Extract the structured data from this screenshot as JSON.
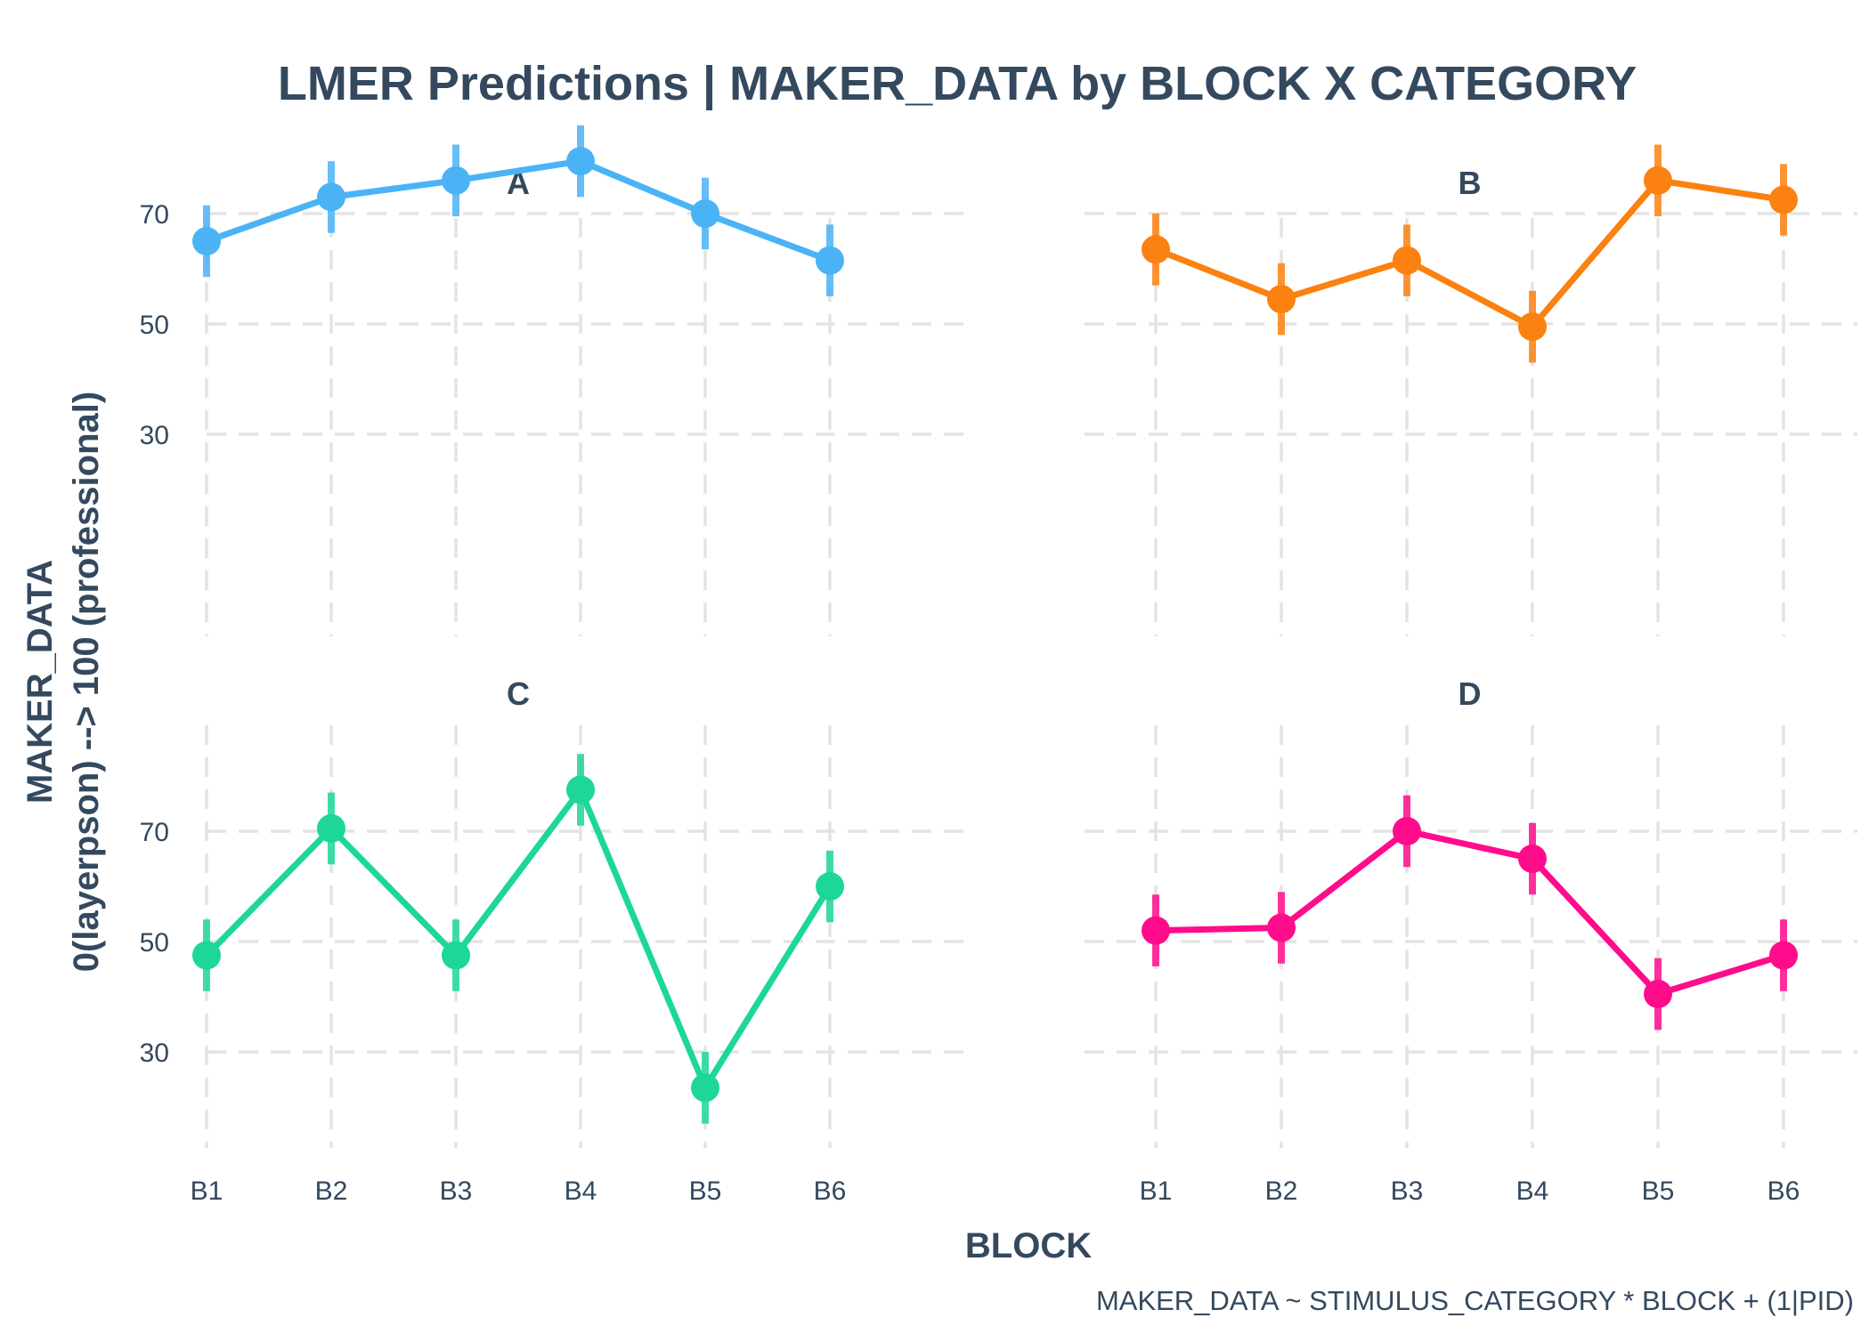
{
  "chart_data": {
    "type": "line",
    "title": "LMER Predictions | MAKER_DATA by BLOCK X CATEGORY",
    "xlabel": "BLOCK",
    "ylabel_lines": [
      "MAKER_DATA",
      "0(layerpson) --> 100 (professional)"
    ],
    "caption": "MAKER_DATA ~ STIMULUS_CATEGORY * BLOCK + (1|PID)",
    "categories": [
      "B1",
      "B2",
      "B3",
      "B4",
      "B5",
      "B6"
    ],
    "y_ticks": [
      30,
      50,
      70
    ],
    "ylim": [
      16,
      89
    ],
    "grid": true,
    "legend": "none",
    "panels": [
      {
        "name": "A",
        "color": "#4ab3f6",
        "values": [
          65,
          73,
          76,
          79.5,
          70,
          61.5
        ],
        "lower": [
          58.5,
          66.5,
          69.5,
          73,
          63.5,
          55
        ],
        "upper": [
          71.5,
          79.5,
          82.5,
          86,
          76.5,
          68
        ]
      },
      {
        "name": "B",
        "color": "#fb8110",
        "values": [
          63.5,
          54.5,
          61.5,
          49.5,
          76,
          72.5
        ],
        "lower": [
          57,
          48,
          55,
          43,
          69.5,
          66
        ],
        "upper": [
          70,
          61,
          68,
          56,
          82.5,
          79
        ]
      },
      {
        "name": "C",
        "color": "#1dd69a",
        "values": [
          47.5,
          70.5,
          47.5,
          77.5,
          23.5,
          60
        ],
        "lower": [
          41,
          64,
          41,
          71,
          17,
          53.5
        ],
        "upper": [
          54,
          77,
          54,
          84,
          30,
          66.5
        ]
      },
      {
        "name": "D",
        "color": "#ff0c8c",
        "values": [
          52,
          52.5,
          70,
          65,
          40.5,
          47.5
        ],
        "lower": [
          45.5,
          46,
          63.5,
          58.5,
          34,
          41
        ],
        "upper": [
          58.5,
          59,
          76.5,
          71.5,
          47,
          54
        ]
      }
    ]
  }
}
